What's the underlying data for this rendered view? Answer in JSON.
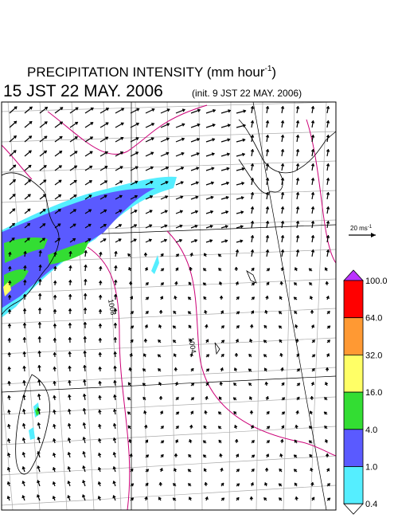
{
  "title": {
    "main": "PRECIPITATION INTENSITY (mm hour",
    "superscript": "-1",
    "end": ")"
  },
  "subtitle": {
    "time": "15 JST 22 MAY. 2006",
    "init": "(init. 9 JST 22 MAY. 2006)"
  },
  "vector_key": {
    "label": "20 ms",
    "superscript": "-1"
  },
  "contour_labels": [
    "1008",
    "1004"
  ],
  "colorbar": [
    {
      "label": "100.0",
      "color": "#ff0000"
    },
    {
      "label": "64.0",
      "color": "#ff9933"
    },
    {
      "label": "32.0",
      "color": "#ffff66"
    },
    {
      "label": "16.0",
      "color": "#33dd33"
    },
    {
      "label": "4.0",
      "color": "#5a5aff"
    },
    {
      "label": "1.0",
      "color": "#55eeff"
    },
    {
      "label": "0.4",
      "color": "#ffffff"
    }
  ]
}
